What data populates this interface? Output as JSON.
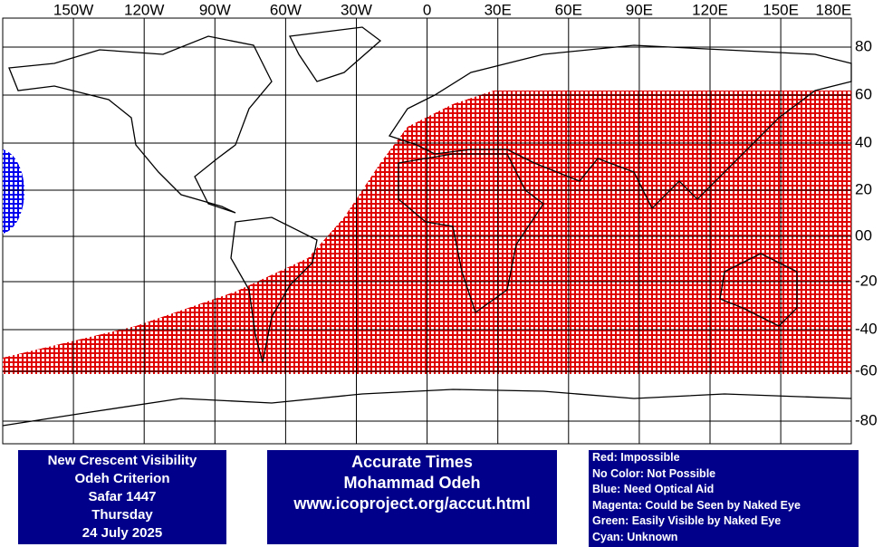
{
  "map": {
    "lon_labels": [
      "150W",
      "120W",
      "90W",
      "60W",
      "30W",
      "0",
      "30E",
      "60E",
      "90E",
      "120E",
      "150E",
      "180E"
    ],
    "lat_labels": [
      "80",
      "60",
      "40",
      "20",
      "00",
      "-20",
      "-40",
      "-60",
      "-80"
    ]
  },
  "info_box": {
    "lines": [
      "New Crescent Visibility",
      "Odeh Criterion",
      "Safar 1447",
      "Thursday",
      "24 July 2025"
    ]
  },
  "credit_box": {
    "lines": [
      "Accurate Times",
      "Mohammad Odeh",
      "www.icoproject.org/accut.html"
    ]
  },
  "legend": {
    "lines": [
      "Red: Impossible",
      "No Color: Not Possible",
      "Blue: Need Optical Aid",
      "Magenta: Could be Seen by Naked Eye",
      "Green: Easily Visible by Naked Eye",
      "Cyan: Unknown"
    ]
  }
}
